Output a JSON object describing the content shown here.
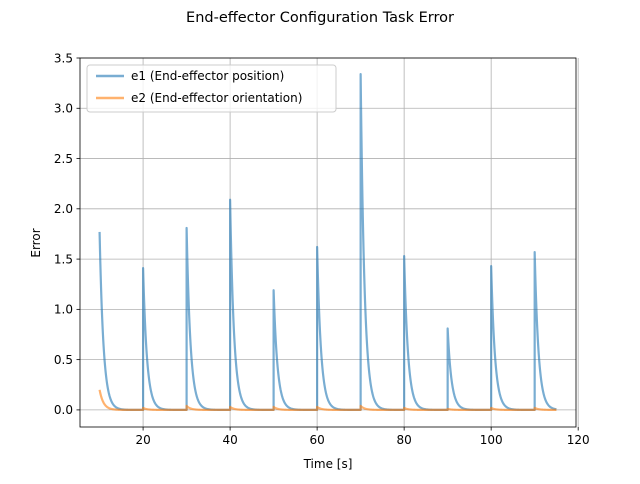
{
  "chart_data": {
    "type": "line",
    "title": "End-effector Configuration Task Error",
    "xlabel": "Time [s]",
    "ylabel": "Error",
    "xlim": [
      5.5,
      119.5
    ],
    "ylim": [
      -0.17,
      3.5
    ],
    "xticks": [
      20,
      40,
      60,
      80,
      100,
      120
    ],
    "xtick_labels": [
      "20",
      "40",
      "60",
      "80",
      "100",
      "120"
    ],
    "yticks": [
      0.0,
      0.5,
      1.0,
      1.5,
      2.0,
      2.5,
      3.0,
      3.5
    ],
    "ytick_labels": [
      "0.0",
      "0.5",
      "1.0",
      "1.5",
      "2.0",
      "2.5",
      "3.0",
      "3.5"
    ],
    "grid": true,
    "legend_position": "top-left",
    "series": [
      {
        "name": "e1 (End-effector position)",
        "color": "#1f77b4",
        "peaks": [
          {
            "t": 10,
            "value": 1.77
          },
          {
            "t": 20,
            "value": 1.41
          },
          {
            "t": 30,
            "value": 1.81
          },
          {
            "t": 40,
            "value": 2.09
          },
          {
            "t": 50,
            "value": 1.19
          },
          {
            "t": 60,
            "value": 1.62
          },
          {
            "t": 70,
            "value": 3.34
          },
          {
            "t": 80,
            "value": 1.53
          },
          {
            "t": 90,
            "value": 0.81
          },
          {
            "t": 100,
            "value": 1.43
          },
          {
            "t": 110,
            "value": 1.57
          }
        ],
        "end_t": 115
      },
      {
        "name": "e2 (End-effector orientation)",
        "color": "#ff7f0e",
        "peaks": [
          {
            "t": 10,
            "value": 0.2
          },
          {
            "t": 20,
            "value": 0.02
          },
          {
            "t": 30,
            "value": 0.04
          },
          {
            "t": 40,
            "value": 0.03
          },
          {
            "t": 50,
            "value": 0.03
          },
          {
            "t": 60,
            "value": 0.03
          },
          {
            "t": 70,
            "value": 0.04
          },
          {
            "t": 80,
            "value": 0.02
          },
          {
            "t": 90,
            "value": 0.01
          },
          {
            "t": 100,
            "value": 0.02
          },
          {
            "t": 110,
            "value": 0.02
          }
        ],
        "end_t": 115
      }
    ]
  }
}
